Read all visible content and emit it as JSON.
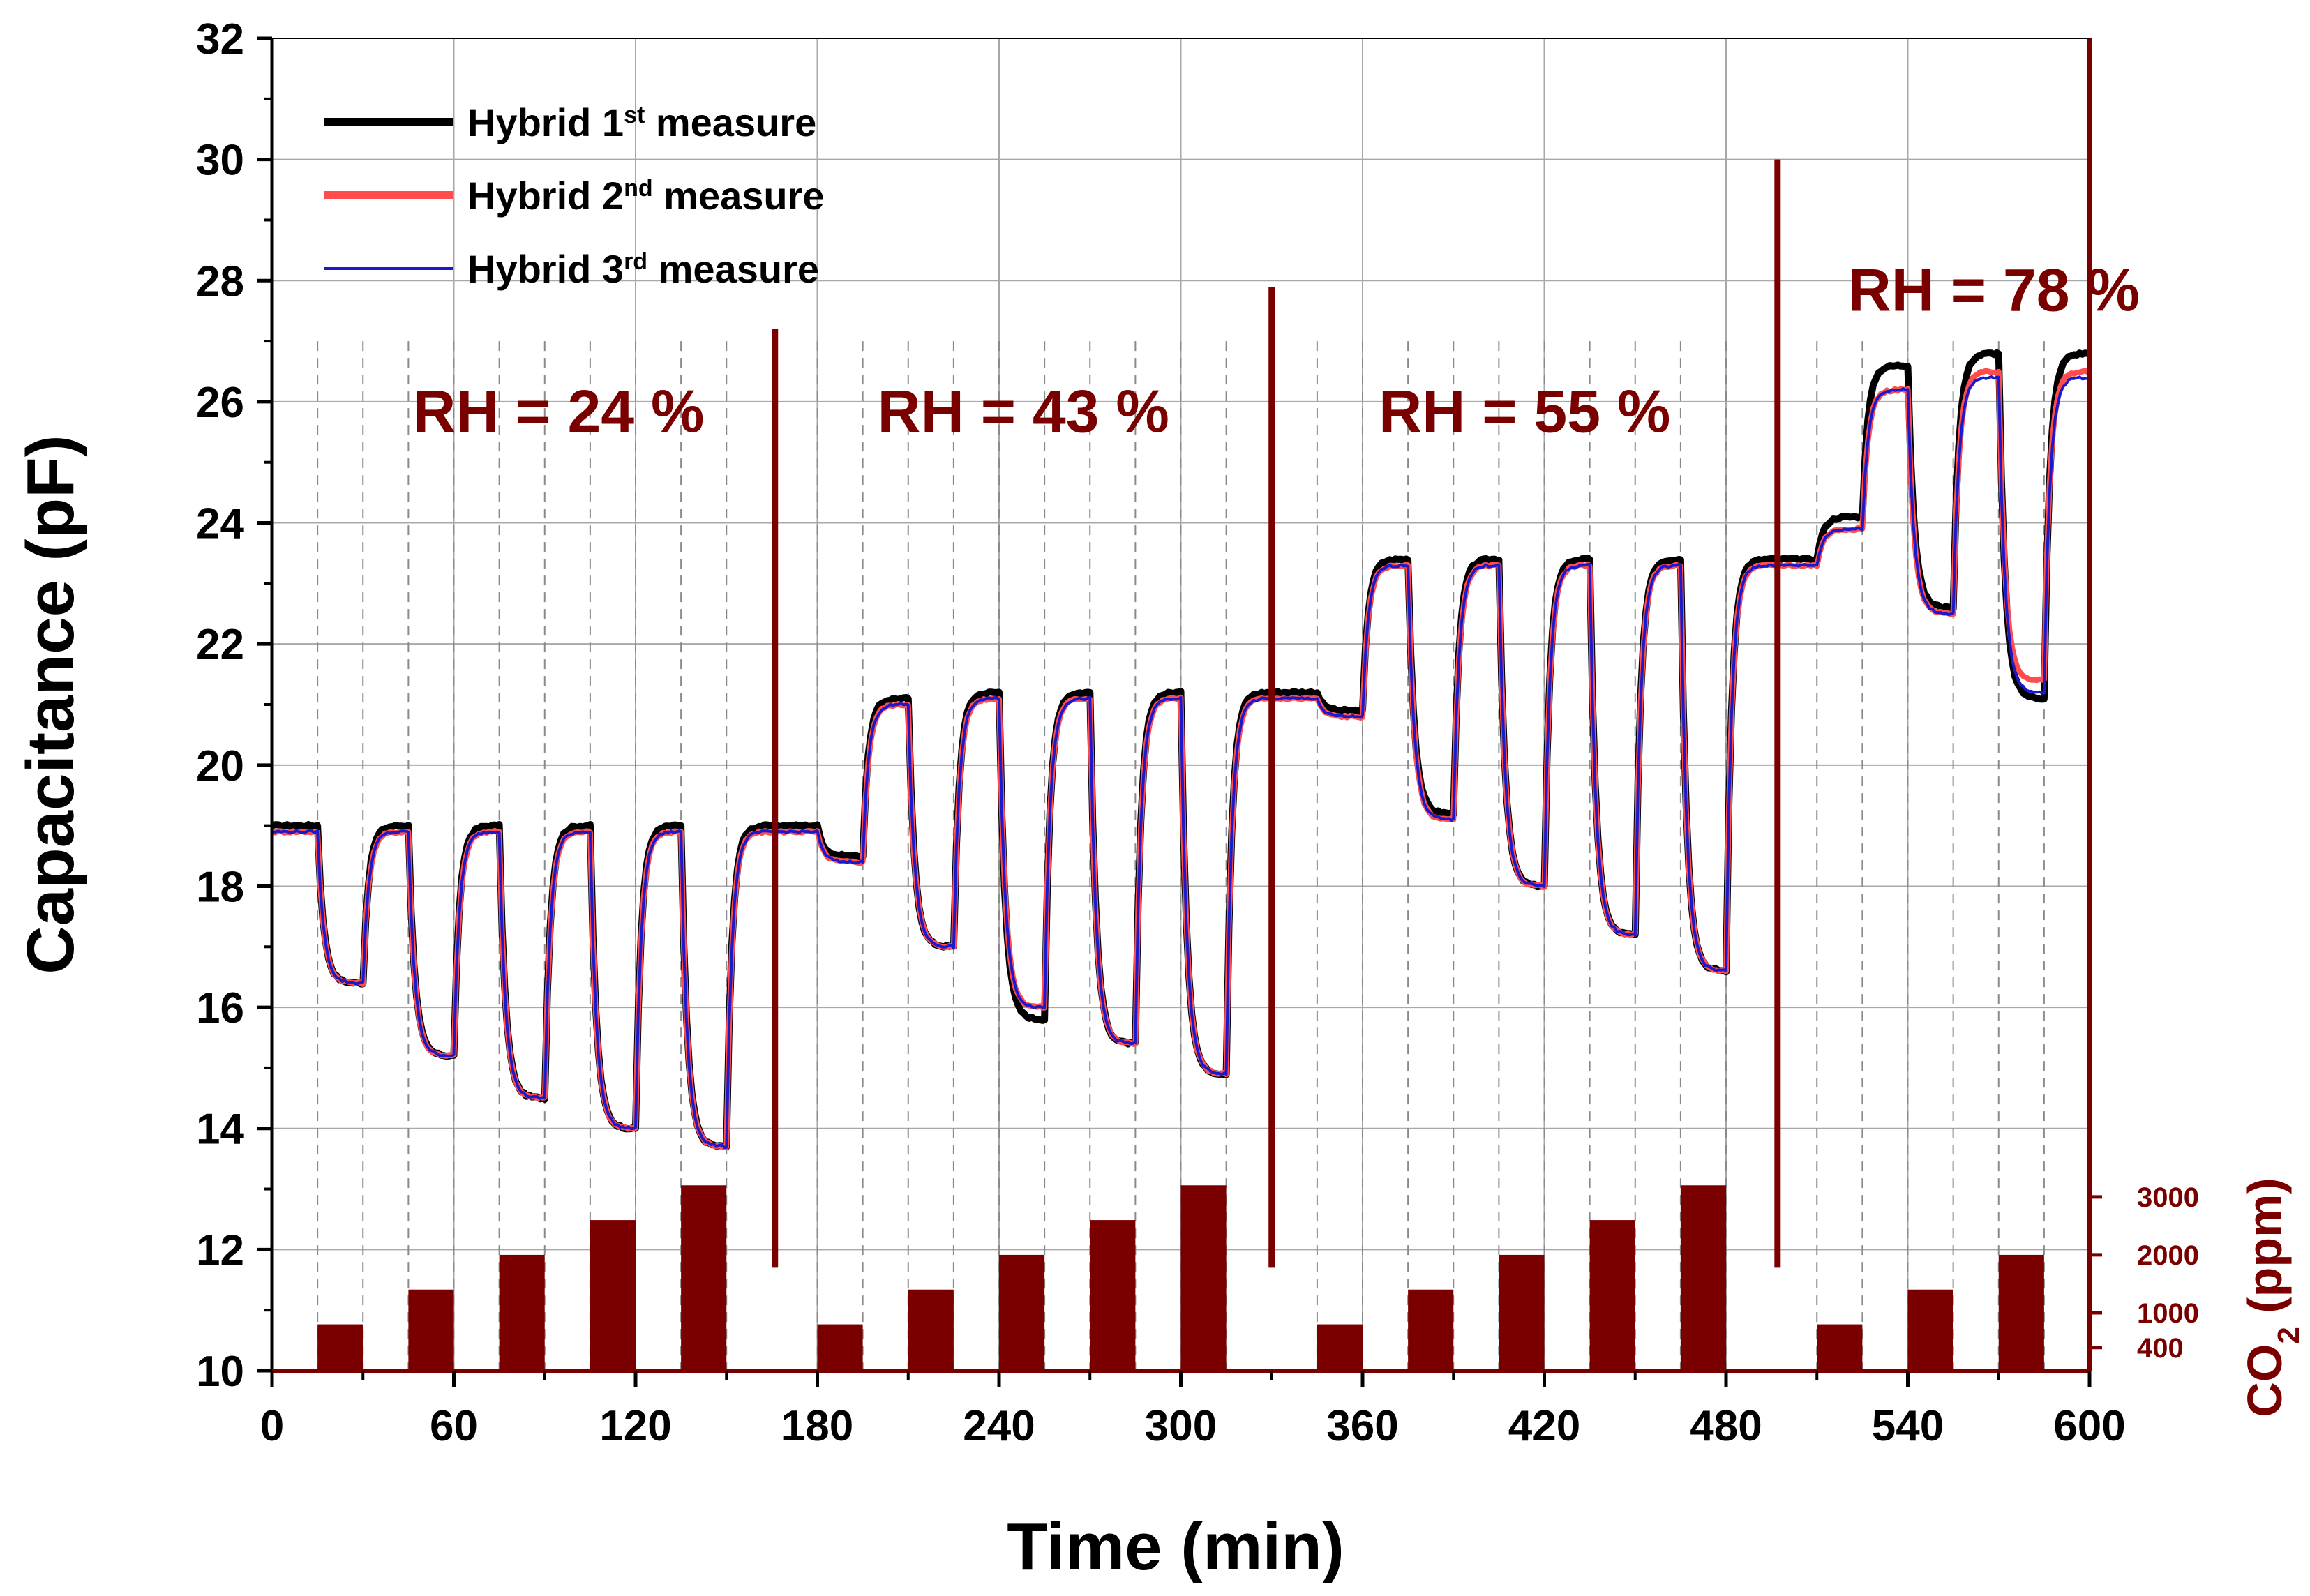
{
  "chart_data": {
    "type": "line",
    "title": "",
    "xlabel": "Time (min)",
    "ylabel": "Capacitance (pF)",
    "y2label": "CO2 (ppm)",
    "xlim": [
      0,
      600
    ],
    "ylim": [
      10,
      32
    ],
    "xticks": [
      0,
      60,
      120,
      180,
      240,
      300,
      360,
      420,
      480,
      540,
      600
    ],
    "yticks": [
      10,
      12,
      14,
      16,
      18,
      20,
      22,
      24,
      26,
      28,
      30,
      32
    ],
    "y2ticks": [
      {
        "label": "400",
        "value": 400
      },
      {
        "label": "1000",
        "value": 1000
      },
      {
        "label": "2000",
        "value": 2000
      },
      {
        "label": "3000",
        "value": 3000
      }
    ],
    "y2lim": [
      0,
      23000
    ],
    "grid": true,
    "legend": {
      "position": "top-left",
      "entries": [
        {
          "base": "Hybrid 1",
          "sup": "st",
          "tail": " measure",
          "color": "#000000"
        },
        {
          "base": "Hybrid 2",
          "sup": "nd",
          "tail": " measure",
          "color": "#ff4d4d"
        },
        {
          "base": "Hybrid 3",
          "sup": "rd",
          "tail": " measure",
          "color": "#1a1acc"
        }
      ]
    },
    "rh_segments": [
      {
        "label": "RH = 24 %",
        "x_start": 0,
        "x_end": 166
      },
      {
        "label": "RH = 43 %",
        "x_start": 166,
        "x_end": 330
      },
      {
        "label": "RH = 55 %",
        "x_start": 330,
        "x_end": 497
      },
      {
        "label": "RH = 78 %",
        "x_start": 497,
        "x_end": 600
      }
    ],
    "rh_dividers": [
      {
        "x": 166,
        "y_top": 27.2
      },
      {
        "x": 330,
        "y_top": 27.9
      },
      {
        "x": 497,
        "y_top": 30.0
      }
    ],
    "co2_pulses": {
      "unit": "ppm",
      "starts": [
        15,
        45,
        75,
        105,
        135,
        180,
        210,
        240,
        270,
        300,
        345,
        375,
        405,
        435,
        465,
        510,
        540,
        570
      ],
      "duration": 15,
      "levels": [
        800,
        1400,
        2000,
        2600,
        3200,
        800,
        1400,
        2000,
        2600,
        3200,
        800,
        1400,
        2000,
        2600,
        3200,
        800,
        1400,
        2000
      ]
    },
    "dashed_event_lines": [
      15,
      30,
      45,
      60,
      75,
      90,
      105,
      120,
      135,
      150,
      180,
      195,
      210,
      225,
      240,
      255,
      270,
      285,
      300,
      315,
      345,
      360,
      375,
      390,
      405,
      420,
      435,
      450,
      465,
      480,
      510,
      525,
      540,
      555,
      570,
      585
    ],
    "series": [
      {
        "name": "Hybrid 1st measure",
        "color": "#000000",
        "baselines": [
          19.0,
          19.0,
          19.0,
          19.0,
          19.0,
          19.0,
          21.1,
          21.2,
          21.2,
          21.2,
          21.2,
          23.4,
          23.4,
          23.4,
          23.4,
          23.4,
          26.6,
          26.8,
          26.8,
          26.7
        ],
        "dips": [
          16.4,
          15.2,
          14.5,
          14.0,
          13.7,
          18.5,
          17.0,
          15.8,
          15.4,
          14.9,
          20.9,
          19.2,
          18.0,
          17.2,
          16.6,
          24.1,
          22.6,
          21.1
        ]
      },
      {
        "name": "Hybrid 2nd measure",
        "color": "#ff4d4d",
        "baselines": [
          18.9,
          18.9,
          18.9,
          18.9,
          18.9,
          18.9,
          21.0,
          21.1,
          21.1,
          21.1,
          21.1,
          23.3,
          23.3,
          23.3,
          23.3,
          23.3,
          26.2,
          26.5,
          26.5,
          26.3
        ],
        "dips": [
          16.4,
          15.2,
          14.5,
          14.0,
          13.7,
          18.4,
          17.0,
          16.0,
          15.4,
          14.9,
          20.8,
          19.1,
          18.0,
          17.2,
          16.6,
          23.9,
          22.5,
          21.4
        ]
      },
      {
        "name": "Hybrid 3rd measure",
        "color": "#1a1acc",
        "baselines": [
          18.9,
          18.9,
          18.9,
          18.9,
          18.9,
          18.9,
          21.0,
          21.1,
          21.1,
          21.1,
          21.1,
          23.3,
          23.3,
          23.3,
          23.3,
          23.3,
          26.2,
          26.4,
          26.4,
          26.3
        ],
        "dips": [
          16.4,
          15.2,
          14.5,
          14.0,
          13.7,
          18.4,
          17.0,
          16.0,
          15.4,
          14.9,
          20.8,
          19.1,
          18.0,
          17.2,
          16.6,
          23.9,
          22.5,
          21.2
        ]
      }
    ]
  }
}
